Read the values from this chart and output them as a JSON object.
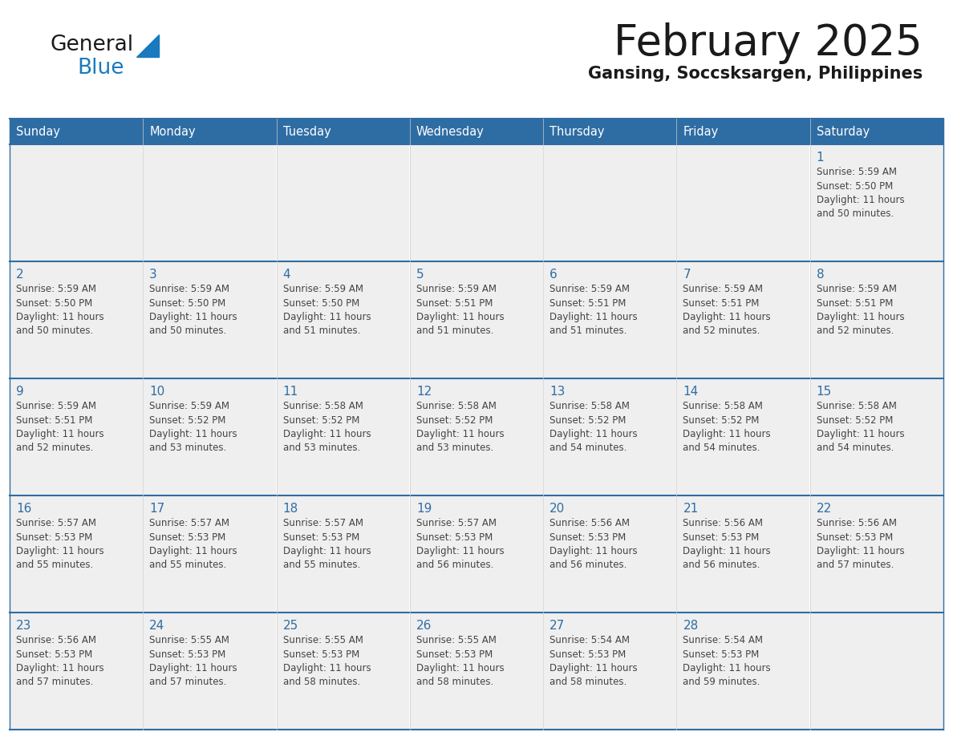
{
  "title": "February 2025",
  "subtitle": "Gansing, Soccsksargen, Philippines",
  "days_of_week": [
    "Sunday",
    "Monday",
    "Tuesday",
    "Wednesday",
    "Thursday",
    "Friday",
    "Saturday"
  ],
  "header_bg": "#2E6DA4",
  "header_text": "#FFFFFF",
  "cell_bg": "#EFEFEF",
  "day_number_color": "#2E6DA4",
  "info_text_color": "#444444",
  "line_color": "#2E6DA4",
  "calendar_data": [
    [
      null,
      null,
      null,
      null,
      null,
      null,
      {
        "day": 1,
        "sunrise": "5:59 AM",
        "sunset": "5:50 PM",
        "daylight": "11 hours\nand 50 minutes."
      }
    ],
    [
      {
        "day": 2,
        "sunrise": "5:59 AM",
        "sunset": "5:50 PM",
        "daylight": "11 hours\nand 50 minutes."
      },
      {
        "day": 3,
        "sunrise": "5:59 AM",
        "sunset": "5:50 PM",
        "daylight": "11 hours\nand 50 minutes."
      },
      {
        "day": 4,
        "sunrise": "5:59 AM",
        "sunset": "5:50 PM",
        "daylight": "11 hours\nand 51 minutes."
      },
      {
        "day": 5,
        "sunrise": "5:59 AM",
        "sunset": "5:51 PM",
        "daylight": "11 hours\nand 51 minutes."
      },
      {
        "day": 6,
        "sunrise": "5:59 AM",
        "sunset": "5:51 PM",
        "daylight": "11 hours\nand 51 minutes."
      },
      {
        "day": 7,
        "sunrise": "5:59 AM",
        "sunset": "5:51 PM",
        "daylight": "11 hours\nand 52 minutes."
      },
      {
        "day": 8,
        "sunrise": "5:59 AM",
        "sunset": "5:51 PM",
        "daylight": "11 hours\nand 52 minutes."
      }
    ],
    [
      {
        "day": 9,
        "sunrise": "5:59 AM",
        "sunset": "5:51 PM",
        "daylight": "11 hours\nand 52 minutes."
      },
      {
        "day": 10,
        "sunrise": "5:59 AM",
        "sunset": "5:52 PM",
        "daylight": "11 hours\nand 53 minutes."
      },
      {
        "day": 11,
        "sunrise": "5:58 AM",
        "sunset": "5:52 PM",
        "daylight": "11 hours\nand 53 minutes."
      },
      {
        "day": 12,
        "sunrise": "5:58 AM",
        "sunset": "5:52 PM",
        "daylight": "11 hours\nand 53 minutes."
      },
      {
        "day": 13,
        "sunrise": "5:58 AM",
        "sunset": "5:52 PM",
        "daylight": "11 hours\nand 54 minutes."
      },
      {
        "day": 14,
        "sunrise": "5:58 AM",
        "sunset": "5:52 PM",
        "daylight": "11 hours\nand 54 minutes."
      },
      {
        "day": 15,
        "sunrise": "5:58 AM",
        "sunset": "5:52 PM",
        "daylight": "11 hours\nand 54 minutes."
      }
    ],
    [
      {
        "day": 16,
        "sunrise": "5:57 AM",
        "sunset": "5:53 PM",
        "daylight": "11 hours\nand 55 minutes."
      },
      {
        "day": 17,
        "sunrise": "5:57 AM",
        "sunset": "5:53 PM",
        "daylight": "11 hours\nand 55 minutes."
      },
      {
        "day": 18,
        "sunrise": "5:57 AM",
        "sunset": "5:53 PM",
        "daylight": "11 hours\nand 55 minutes."
      },
      {
        "day": 19,
        "sunrise": "5:57 AM",
        "sunset": "5:53 PM",
        "daylight": "11 hours\nand 56 minutes."
      },
      {
        "day": 20,
        "sunrise": "5:56 AM",
        "sunset": "5:53 PM",
        "daylight": "11 hours\nand 56 minutes."
      },
      {
        "day": 21,
        "sunrise": "5:56 AM",
        "sunset": "5:53 PM",
        "daylight": "11 hours\nand 56 minutes."
      },
      {
        "day": 22,
        "sunrise": "5:56 AM",
        "sunset": "5:53 PM",
        "daylight": "11 hours\nand 57 minutes."
      }
    ],
    [
      {
        "day": 23,
        "sunrise": "5:56 AM",
        "sunset": "5:53 PM",
        "daylight": "11 hours\nand 57 minutes."
      },
      {
        "day": 24,
        "sunrise": "5:55 AM",
        "sunset": "5:53 PM",
        "daylight": "11 hours\nand 57 minutes."
      },
      {
        "day": 25,
        "sunrise": "5:55 AM",
        "sunset": "5:53 PM",
        "daylight": "11 hours\nand 58 minutes."
      },
      {
        "day": 26,
        "sunrise": "5:55 AM",
        "sunset": "5:53 PM",
        "daylight": "11 hours\nand 58 minutes."
      },
      {
        "day": 27,
        "sunrise": "5:54 AM",
        "sunset": "5:53 PM",
        "daylight": "11 hours\nand 58 minutes."
      },
      {
        "day": 28,
        "sunrise": "5:54 AM",
        "sunset": "5:53 PM",
        "daylight": "11 hours\nand 59 minutes."
      },
      null
    ]
  ],
  "logo_text_general": "General",
  "logo_text_blue": "Blue",
  "logo_color_general": "#1a1a1a",
  "logo_color_blue": "#1a7abf",
  "logo_triangle_color": "#1a7abf",
  "title_fontsize": 38,
  "subtitle_fontsize": 15,
  "title_fontweight": "normal",
  "subtitle_fontweight": "bold"
}
